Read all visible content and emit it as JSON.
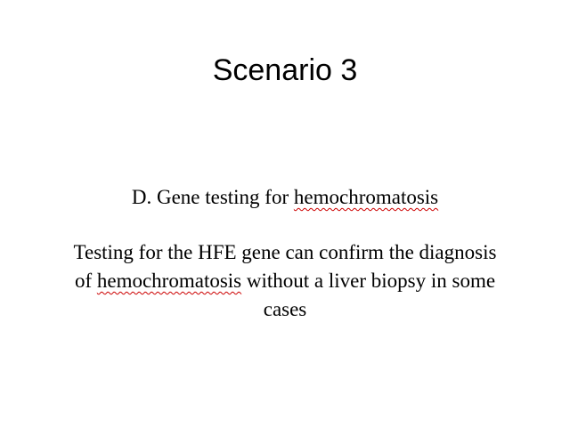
{
  "slide": {
    "title": "Scenario 3",
    "option": {
      "prefix": "D. Gene testing for ",
      "flagged_word": "hemochromatosis"
    },
    "explanation": {
      "line1": "Testing for the HFE gene can confirm the diagnosis",
      "line2_prefix": "of ",
      "line2_flagged_word": "hemochromatosis",
      "line2_suffix": " without a liver biopsy in some",
      "line3": "cases"
    },
    "colors": {
      "text": "#000000",
      "background": "#ffffff",
      "spellcheck_underline": "#cc0000"
    }
  }
}
